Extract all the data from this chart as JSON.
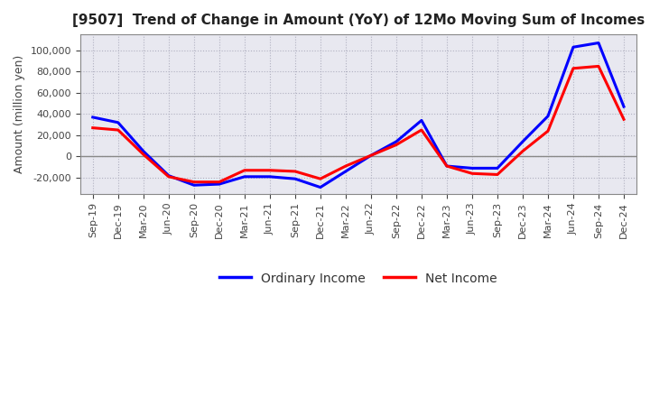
{
  "title": "[9507]  Trend of Change in Amount (YoY) of 12Mo Moving Sum of Incomes",
  "ylabel": "Amount (million yen)",
  "x_labels": [
    "Sep-19",
    "Dec-19",
    "Mar-20",
    "Jun-20",
    "Sep-20",
    "Dec-20",
    "Mar-21",
    "Jun-21",
    "Sep-21",
    "Dec-21",
    "Mar-22",
    "Jun-22",
    "Sep-22",
    "Dec-22",
    "Mar-23",
    "Jun-23",
    "Sep-23",
    "Dec-23",
    "Mar-24",
    "Jun-24",
    "Sep-24",
    "Dec-24"
  ],
  "ordinary_income": [
    37000,
    32000,
    5000,
    -18000,
    -27000,
    -26000,
    -19000,
    -19000,
    -21000,
    -29000,
    -14000,
    1000,
    14000,
    34000,
    -9000,
    -11000,
    -11000,
    14000,
    38000,
    103000,
    107000,
    47000
  ],
  "net_income": [
    27000,
    25000,
    2000,
    -19000,
    -24000,
    -24000,
    -13000,
    -13000,
    -14000,
    -21000,
    -9000,
    1000,
    11000,
    25000,
    -9000,
    -16000,
    -17000,
    5000,
    24000,
    83000,
    85000,
    35000
  ],
  "ordinary_color": "#0000ff",
  "net_color": "#ff0000",
  "ylim": [
    -35000,
    115000
  ],
  "yticks": [
    -20000,
    0,
    20000,
    40000,
    60000,
    80000,
    100000
  ],
  "plot_bg_color": "#e8e8f0",
  "fig_bg_color": "#ffffff",
  "grid_color": "#b0b0c0",
  "legend_ordinary": "Ordinary Income",
  "legend_net": "Net Income",
  "line_width": 2.2,
  "title_fontsize": 11,
  "ylabel_fontsize": 9,
  "tick_fontsize": 8,
  "legend_fontsize": 10
}
